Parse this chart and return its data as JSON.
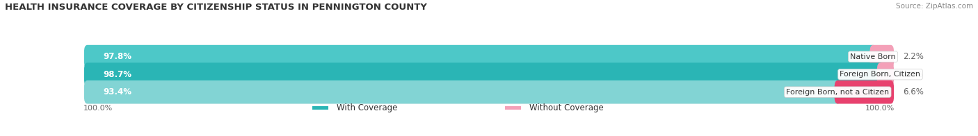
{
  "title": "HEALTH INSURANCE COVERAGE BY CITIZENSHIP STATUS IN PENNINGTON COUNTY",
  "source": "Source: ZipAtlas.com",
  "categories": [
    "Native Born",
    "Foreign Born, Citizen",
    "Foreign Born, not a Citizen"
  ],
  "with_coverage": [
    97.8,
    98.7,
    93.4
  ],
  "without_coverage": [
    2.2,
    1.3,
    6.6
  ],
  "color_with_0": "#4dc8c8",
  "color_with_1": "#2ab5b5",
  "color_with_2": "#82d4d4",
  "color_without_0": "#f4a0b8",
  "color_without_1": "#f4a0b8",
  "color_without_2": "#e8416e",
  "bar_bg_color": "#efefef",
  "title_fontsize": 9.5,
  "source_fontsize": 7.5,
  "label_fontsize": 8.5,
  "cat_fontsize": 8,
  "legend_fontsize": 8.5,
  "axis_label_left": "100.0%",
  "axis_label_right": "100.0%"
}
